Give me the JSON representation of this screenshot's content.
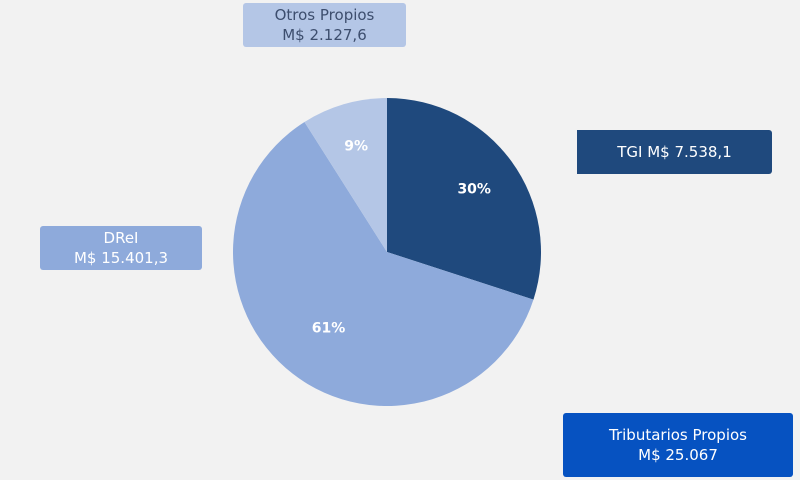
{
  "chart_data": {
    "type": "pie",
    "slices": [
      {
        "label": "TGI M$ 7.538,1",
        "value": 30,
        "display": "30%",
        "color": "#1f497d",
        "label_color": "#ffffff"
      },
      {
        "label": "DReI M$ 15.401,3",
        "value": 61,
        "display": "61%",
        "color": "#8eaadb",
        "label_color": "#ffffff"
      },
      {
        "label": "Otros Propios M$ 2.127,6",
        "value": 9,
        "display": "9%",
        "color": "#b4c6e6",
        "label_color": "#ffffff"
      }
    ]
  },
  "callouts": {
    "otros": {
      "line1": "Otros Propios",
      "line2": "M$ 2.127,6"
    },
    "tgi": {
      "line1": "TGI M$ 7.538,1"
    },
    "drel": {
      "line1": "DReI",
      "line2": "M$ 15.401,3"
    },
    "total": {
      "line1": "Tributarios Propios",
      "line2": "M$ 25.067"
    }
  },
  "colors": {
    "background": "#f2f2f2",
    "tgi": "#1f497d",
    "drel": "#8eaadb",
    "otros": "#b4c6e6",
    "total": "#0652c1"
  }
}
